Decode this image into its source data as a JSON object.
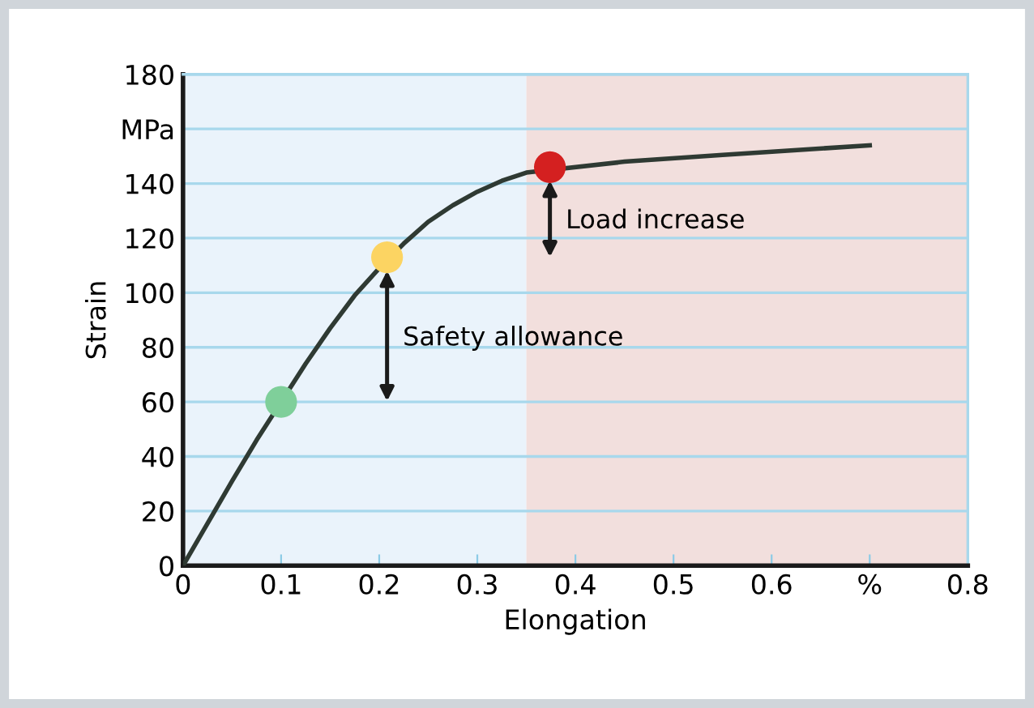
{
  "chart_data": {
    "type": "line",
    "xlabel": "Elongation",
    "ylabel": "Strain",
    "series": [
      {
        "color": "#2f3a33",
        "x": [
          0,
          0.025,
          0.05,
          0.075,
          0.125,
          0.15,
          0.175,
          0.2,
          0.225,
          0.25,
          0.275,
          0.3,
          0.325,
          0.35,
          0.45,
          0.55,
          0.7
        ],
        "values": [
          0,
          15.5,
          31,
          46,
          74,
          87,
          99,
          109,
          118,
          126,
          132,
          137,
          141,
          144,
          148,
          150.5,
          154
        ]
      },
      {
        "type": "scatter",
        "colors": [
          "#7fcf9a",
          "#fcd462",
          "#d42020"
        ],
        "x": [
          0.1,
          0.208,
          0.374
        ],
        "values": [
          60,
          113,
          146
        ]
      }
    ],
    "annotations": [
      {
        "text": "Safety allowance",
        "x": 0.208,
        "y": 113
      },
      {
        "text": "Load increase",
        "x": 0.374,
        "y": 146
      }
    ],
    "bands": [
      {
        "axis": "x",
        "from": 0,
        "to": 0.35,
        "color": "#eaf3fb"
      },
      {
        "axis": "x",
        "from": 0.35,
        "to": 0.8,
        "color": "#f2dfdd"
      }
    ],
    "xlim": [
      0,
      0.8
    ],
    "ylim": [
      0,
      180
    ],
    "xticks": [
      0,
      0.1,
      0.2,
      0.3,
      0.4,
      0.5,
      0.6,
      {
        "value": 0.7,
        "label": "%"
      },
      0.8
    ],
    "yticks": [
      0,
      20,
      40,
      60,
      80,
      100,
      120,
      140,
      {
        "value": 160,
        "label": "MPa"
      },
      180
    ],
    "grid": "y"
  }
}
